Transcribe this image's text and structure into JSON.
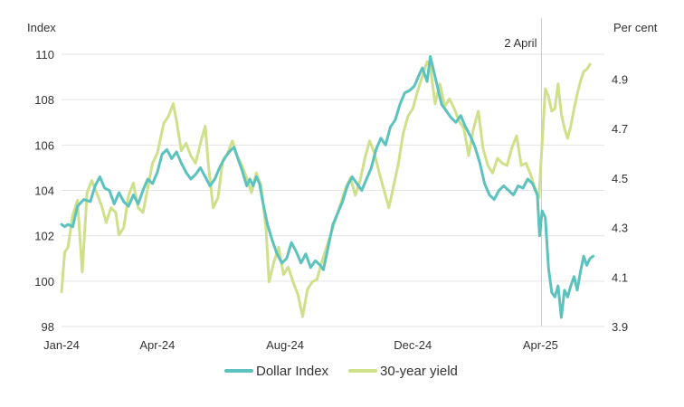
{
  "chart_data": {
    "type": "line",
    "title": "",
    "left_axis": {
      "label": "Index",
      "min": 98,
      "max": 110,
      "ticks": [
        "98",
        "100",
        "102",
        "104",
        "106",
        "108",
        "110"
      ]
    },
    "right_axis": {
      "label": "Per cent",
      "min": 3.9,
      "max": 5.0,
      "ticks": [
        "3.9",
        "4.1",
        "4.3",
        "4.5",
        "4.7",
        "4.9"
      ]
    },
    "x_axis": {
      "min": 0,
      "max": 17,
      "unit": "months since Jan-24",
      "ticks": [
        {
          "label": "Jan-24",
          "t": 0
        },
        {
          "label": "Apr-24",
          "t": 3
        },
        {
          "label": "Aug-24",
          "t": 7
        },
        {
          "label": "Dec-24",
          "t": 11
        },
        {
          "label": "Apr-25",
          "t": 15
        }
      ]
    },
    "annotation": {
      "label": "2 April",
      "t": 15.03
    },
    "legend": {
      "position": "bottom-center"
    },
    "colors": {
      "dollar": "#5bc2bd",
      "yield": "#cfe08a",
      "grid": "#e3e3e3",
      "marker": "#cccccc"
    },
    "series": [
      {
        "name": "Dollar Index",
        "axis": "left",
        "points": [
          [
            0,
            102.5
          ],
          [
            0.1,
            102.4
          ],
          [
            0.2,
            102.5
          ],
          [
            0.35,
            102.4
          ],
          [
            0.5,
            103.3
          ],
          [
            0.7,
            103.6
          ],
          [
            0.9,
            103.5
          ],
          [
            1.05,
            104.2
          ],
          [
            1.2,
            104.6
          ],
          [
            1.35,
            104.1
          ],
          [
            1.5,
            104.0
          ],
          [
            1.65,
            103.4
          ],
          [
            1.8,
            103.9
          ],
          [
            1.95,
            103.5
          ],
          [
            2.1,
            103.3
          ],
          [
            2.25,
            103.8
          ],
          [
            2.4,
            103.4
          ],
          [
            2.55,
            104.0
          ],
          [
            2.7,
            104.5
          ],
          [
            2.85,
            104.3
          ],
          [
            3.0,
            104.8
          ],
          [
            3.15,
            105.6
          ],
          [
            3.3,
            105.8
          ],
          [
            3.45,
            105.4
          ],
          [
            3.6,
            105.7
          ],
          [
            3.75,
            105.2
          ],
          [
            3.9,
            104.8
          ],
          [
            4.05,
            104.5
          ],
          [
            4.2,
            104.7
          ],
          [
            4.35,
            105.0
          ],
          [
            4.5,
            104.6
          ],
          [
            4.65,
            104.2
          ],
          [
            4.8,
            104.5
          ],
          [
            4.95,
            105.0
          ],
          [
            5.1,
            105.4
          ],
          [
            5.25,
            105.7
          ],
          [
            5.4,
            105.9
          ],
          [
            5.5,
            105.5
          ],
          [
            5.65,
            104.9
          ],
          [
            5.8,
            104.2
          ],
          [
            5.9,
            104.5
          ],
          [
            6.0,
            104.2
          ],
          [
            6.1,
            104.6
          ],
          [
            6.2,
            104.3
          ],
          [
            6.3,
            103.5
          ],
          [
            6.45,
            102.5
          ],
          [
            6.6,
            101.8
          ],
          [
            6.75,
            101.2
          ],
          [
            6.9,
            100.8
          ],
          [
            7.05,
            101.0
          ],
          [
            7.2,
            101.7
          ],
          [
            7.35,
            101.3
          ],
          [
            7.5,
            100.8
          ],
          [
            7.65,
            101.2
          ],
          [
            7.8,
            100.6
          ],
          [
            7.95,
            100.9
          ],
          [
            8.1,
            100.7
          ],
          [
            8.2,
            100.5
          ],
          [
            8.35,
            101.5
          ],
          [
            8.5,
            102.5
          ],
          [
            8.65,
            103.0
          ],
          [
            8.8,
            103.5
          ],
          [
            8.95,
            104.2
          ],
          [
            9.1,
            104.6
          ],
          [
            9.25,
            104.3
          ],
          [
            9.4,
            104.0
          ],
          [
            9.55,
            104.5
          ],
          [
            9.7,
            105.0
          ],
          [
            9.85,
            105.8
          ],
          [
            10.0,
            106.3
          ],
          [
            10.15,
            106.0
          ],
          [
            10.3,
            106.8
          ],
          [
            10.45,
            107.1
          ],
          [
            10.6,
            107.8
          ],
          [
            10.75,
            108.3
          ],
          [
            10.9,
            108.4
          ],
          [
            11.05,
            108.6
          ],
          [
            11.2,
            109.1
          ],
          [
            11.3,
            109.4
          ],
          [
            11.45,
            108.8
          ],
          [
            11.55,
            109.9
          ],
          [
            11.6,
            109.6
          ],
          [
            11.75,
            108.7
          ],
          [
            11.9,
            107.8
          ],
          [
            12.05,
            107.5
          ],
          [
            12.2,
            107.2
          ],
          [
            12.35,
            107.0
          ],
          [
            12.5,
            107.3
          ],
          [
            12.65,
            106.8
          ],
          [
            12.8,
            106.4
          ],
          [
            12.95,
            105.9
          ],
          [
            13.1,
            105.2
          ],
          [
            13.25,
            104.3
          ],
          [
            13.4,
            103.8
          ],
          [
            13.55,
            103.6
          ],
          [
            13.7,
            104.0
          ],
          [
            13.85,
            104.2
          ],
          [
            14.0,
            104.0
          ],
          [
            14.15,
            103.8
          ],
          [
            14.3,
            104.2
          ],
          [
            14.45,
            104.1
          ],
          [
            14.6,
            104.5
          ],
          [
            14.75,
            104.3
          ],
          [
            14.9,
            103.8
          ],
          [
            14.97,
            102.0
          ],
          [
            15.05,
            103.1
          ],
          [
            15.15,
            102.8
          ],
          [
            15.25,
            100.6
          ],
          [
            15.35,
            99.5
          ],
          [
            15.45,
            99.3
          ],
          [
            15.55,
            99.8
          ],
          [
            15.65,
            98.4
          ],
          [
            15.75,
            99.6
          ],
          [
            15.85,
            99.3
          ],
          [
            15.95,
            99.8
          ],
          [
            16.05,
            100.2
          ],
          [
            16.15,
            99.6
          ],
          [
            16.25,
            100.4
          ],
          [
            16.35,
            101.1
          ],
          [
            16.45,
            100.7
          ],
          [
            16.55,
            101.0
          ],
          [
            16.65,
            101.1
          ]
        ]
      },
      {
        "name": "30-year yield",
        "axis": "right",
        "points": [
          [
            0,
            4.04
          ],
          [
            0.1,
            4.2
          ],
          [
            0.2,
            4.22
          ],
          [
            0.35,
            4.35
          ],
          [
            0.5,
            4.41
          ],
          [
            0.65,
            4.12
          ],
          [
            0.8,
            4.44
          ],
          [
            0.95,
            4.49
          ],
          [
            1.1,
            4.44
          ],
          [
            1.25,
            4.39
          ],
          [
            1.4,
            4.32
          ],
          [
            1.55,
            4.38
          ],
          [
            1.7,
            4.36
          ],
          [
            1.8,
            4.27
          ],
          [
            1.95,
            4.3
          ],
          [
            2.1,
            4.43
          ],
          [
            2.25,
            4.48
          ],
          [
            2.4,
            4.38
          ],
          [
            2.55,
            4.36
          ],
          [
            2.7,
            4.46
          ],
          [
            2.85,
            4.56
          ],
          [
            3.0,
            4.6
          ],
          [
            3.1,
            4.66
          ],
          [
            3.2,
            4.72
          ],
          [
            3.35,
            4.75
          ],
          [
            3.5,
            4.8
          ],
          [
            3.6,
            4.73
          ],
          [
            3.75,
            4.61
          ],
          [
            3.9,
            4.64
          ],
          [
            4.05,
            4.59
          ],
          [
            4.2,
            4.56
          ],
          [
            4.35,
            4.64
          ],
          [
            4.5,
            4.71
          ],
          [
            4.6,
            4.55
          ],
          [
            4.75,
            4.38
          ],
          [
            4.9,
            4.42
          ],
          [
            5.05,
            4.57
          ],
          [
            5.2,
            4.6
          ],
          [
            5.35,
            4.65
          ],
          [
            5.5,
            4.59
          ],
          [
            5.65,
            4.55
          ],
          [
            5.8,
            4.5
          ],
          [
            5.95,
            4.44
          ],
          [
            6.1,
            4.52
          ],
          [
            6.25,
            4.47
          ],
          [
            6.4,
            4.3
          ],
          [
            6.5,
            4.08
          ],
          [
            6.65,
            4.16
          ],
          [
            6.8,
            4.22
          ],
          [
            6.95,
            4.11
          ],
          [
            7.1,
            4.14
          ],
          [
            7.25,
            4.08
          ],
          [
            7.4,
            4.03
          ],
          [
            7.55,
            3.94
          ],
          [
            7.7,
            4.05
          ],
          [
            7.85,
            4.08
          ],
          [
            8.0,
            4.09
          ],
          [
            8.15,
            4.16
          ],
          [
            8.3,
            4.22
          ],
          [
            8.45,
            4.28
          ],
          [
            8.6,
            4.34
          ],
          [
            8.75,
            4.4
          ],
          [
            8.9,
            4.46
          ],
          [
            9.05,
            4.5
          ],
          [
            9.2,
            4.43
          ],
          [
            9.35,
            4.49
          ],
          [
            9.5,
            4.58
          ],
          [
            9.65,
            4.65
          ],
          [
            9.8,
            4.6
          ],
          [
            9.95,
            4.52
          ],
          [
            10.1,
            4.45
          ],
          [
            10.25,
            4.38
          ],
          [
            10.4,
            4.47
          ],
          [
            10.55,
            4.56
          ],
          [
            10.7,
            4.68
          ],
          [
            10.85,
            4.75
          ],
          [
            11.0,
            4.78
          ],
          [
            11.15,
            4.85
          ],
          [
            11.3,
            4.91
          ],
          [
            11.45,
            4.97
          ],
          [
            11.55,
            4.95
          ],
          [
            11.7,
            4.8
          ],
          [
            11.85,
            4.88
          ],
          [
            12.0,
            4.79
          ],
          [
            12.15,
            4.82
          ],
          [
            12.3,
            4.78
          ],
          [
            12.45,
            4.73
          ],
          [
            12.6,
            4.7
          ],
          [
            12.75,
            4.59
          ],
          [
            12.9,
            4.7
          ],
          [
            13.05,
            4.77
          ],
          [
            13.2,
            4.62
          ],
          [
            13.35,
            4.55
          ],
          [
            13.5,
            4.52
          ],
          [
            13.65,
            4.58
          ],
          [
            13.8,
            4.56
          ],
          [
            13.95,
            4.55
          ],
          [
            14.1,
            4.62
          ],
          [
            14.25,
            4.67
          ],
          [
            14.4,
            4.55
          ],
          [
            14.55,
            4.56
          ],
          [
            14.7,
            4.51
          ],
          [
            14.85,
            4.45
          ],
          [
            14.95,
            4.42
          ],
          [
            15.05,
            4.64
          ],
          [
            15.15,
            4.86
          ],
          [
            15.25,
            4.83
          ],
          [
            15.35,
            4.77
          ],
          [
            15.45,
            4.78
          ],
          [
            15.55,
            4.88
          ],
          [
            15.65,
            4.76
          ],
          [
            15.75,
            4.7
          ],
          [
            15.85,
            4.66
          ],
          [
            15.95,
            4.71
          ],
          [
            16.05,
            4.78
          ],
          [
            16.15,
            4.84
          ],
          [
            16.25,
            4.89
          ],
          [
            16.35,
            4.93
          ],
          [
            16.45,
            4.94
          ],
          [
            16.55,
            4.96
          ]
        ]
      }
    ]
  }
}
